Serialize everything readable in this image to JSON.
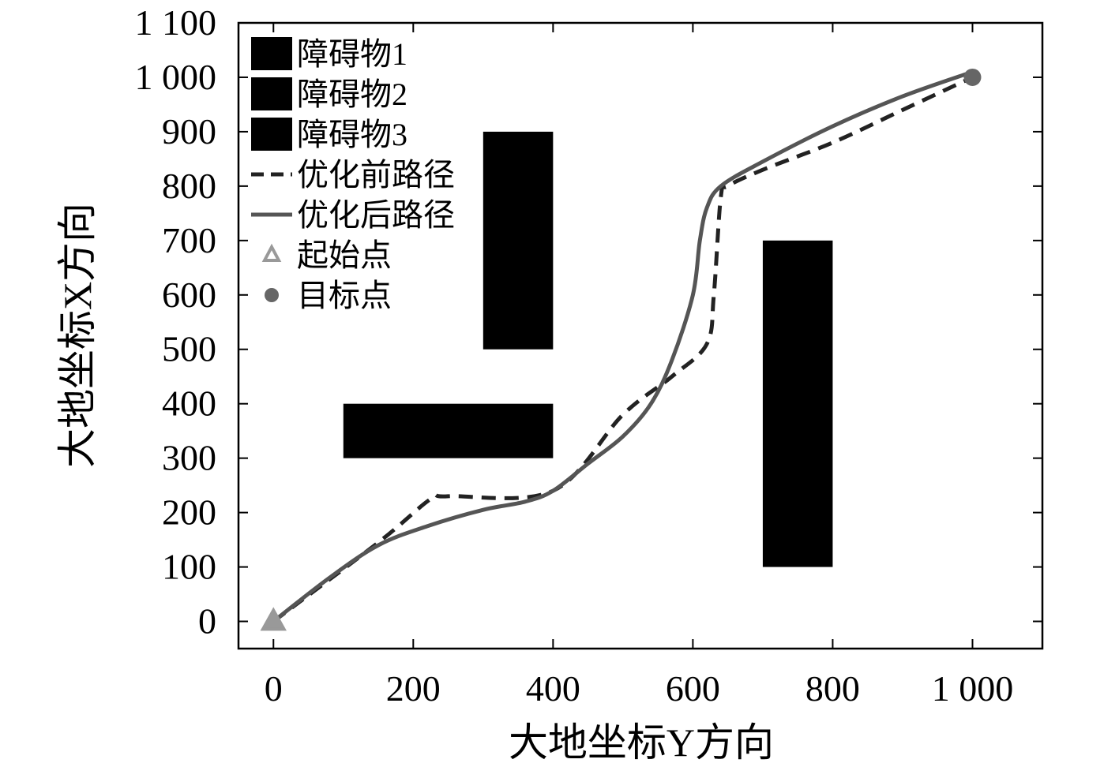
{
  "chart_data": {
    "type": "line",
    "xlabel": "大地坐标Y方向",
    "ylabel": "大地坐标X方向",
    "xlim": [
      -50,
      1100
    ],
    "ylim": [
      -50,
      1100
    ],
    "x_ticks": [
      0,
      200,
      400,
      600,
      800,
      1000
    ],
    "x_tick_labels": [
      "0",
      "200",
      "400",
      "600",
      "800",
      "1 000"
    ],
    "y_ticks": [
      0,
      100,
      200,
      300,
      400,
      500,
      600,
      700,
      800,
      900,
      1000,
      1100
    ],
    "y_tick_labels": [
      "0",
      "100",
      "200",
      "300",
      "400",
      "500",
      "600",
      "700",
      "800",
      "900",
      "1 000",
      "1 100"
    ],
    "grid": false,
    "legend_position": "top-left",
    "obstacles": [
      {
        "name": "障碍物1",
        "x": [
          100,
          400
        ],
        "y": [
          300,
          400
        ],
        "color": "#000000"
      },
      {
        "name": "障碍物2",
        "x": [
          300,
          400
        ],
        "y": [
          500,
          900
        ],
        "color": "#000000"
      },
      {
        "name": "障碍物3",
        "x": [
          700,
          800
        ],
        "y": [
          100,
          700
        ],
        "color": "#000000"
      }
    ],
    "series": [
      {
        "name": "优化前路径",
        "style": "dashed",
        "color": "#222222",
        "x": [
          0,
          150,
          225,
          250,
          400,
          500,
          570,
          620,
          630,
          640,
          650,
          700,
          800,
          900,
          1000
        ],
        "y": [
          0,
          145,
          225,
          230,
          240,
          380,
          450,
          510,
          600,
          780,
          800,
          830,
          880,
          940,
          1000
        ]
      },
      {
        "name": "优化后路径",
        "style": "solid",
        "color": "#555555",
        "x": [
          0,
          80,
          150,
          220,
          300,
          360,
          400,
          450,
          500,
          540,
          570,
          600,
          610,
          620,
          640,
          700,
          800,
          900,
          1000
        ],
        "y": [
          0,
          80,
          140,
          175,
          205,
          220,
          240,
          290,
          340,
          400,
          480,
          600,
          700,
          760,
          800,
          845,
          910,
          965,
          1010
        ]
      }
    ],
    "markers": [
      {
        "name": "起始点",
        "shape": "triangle",
        "x": 0,
        "y": 0,
        "color": "#999999"
      },
      {
        "name": "目标点",
        "shape": "circle",
        "x": 1000,
        "y": 1000,
        "color": "#666666"
      }
    ]
  }
}
